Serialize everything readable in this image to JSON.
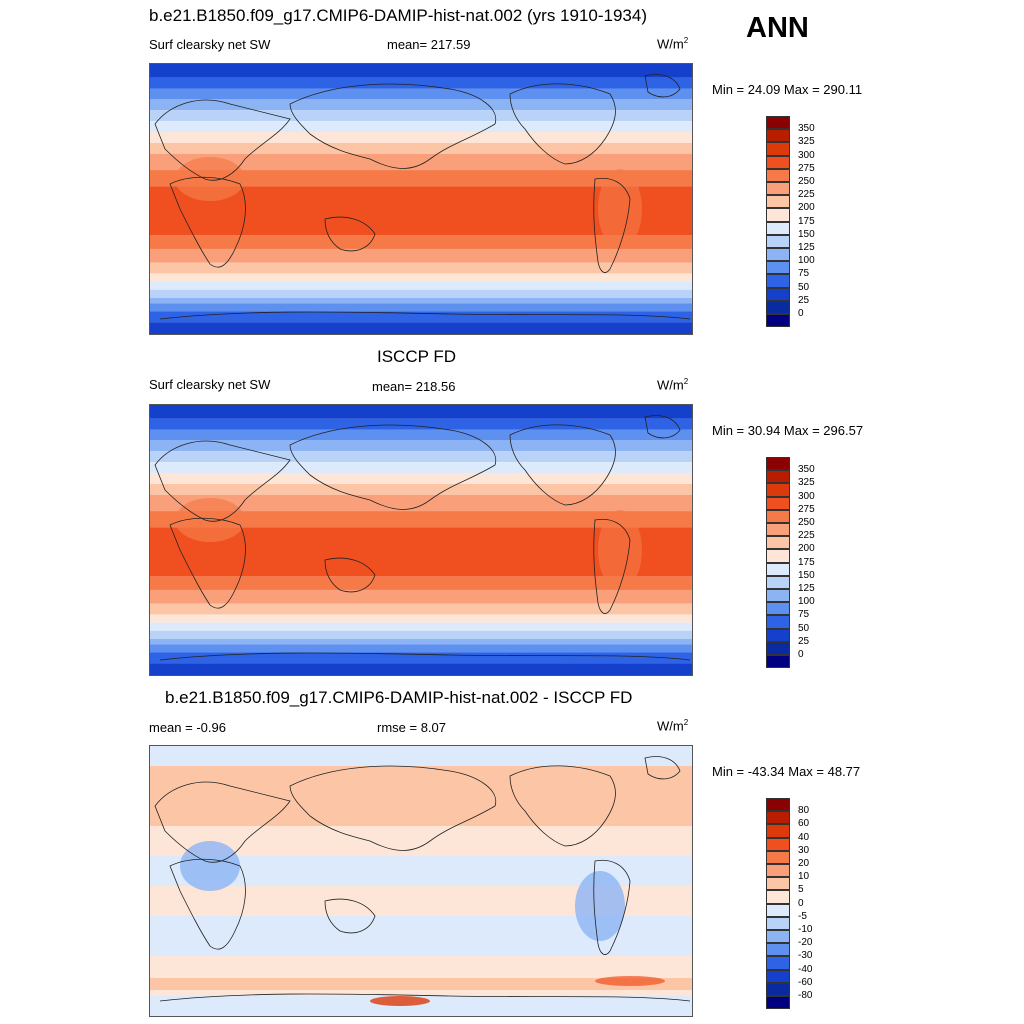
{
  "figure": {
    "season": "ANN"
  },
  "panels": [
    {
      "title": "b.e21.B1850.f09_g17.CMIP6-DAMIP-hist-nat.002 (yrs 1910-1934)",
      "left_label": "Surf clearsky net SW",
      "center_label": "mean= 217.59",
      "units": "W/m",
      "units_sup": "2",
      "minmax": "Min =  24.09 Max = 290.11",
      "field": "model"
    },
    {
      "title": "ISCCP FD",
      "left_label": "Surf clearsky net SW",
      "center_label": "mean= 218.56",
      "units": "W/m",
      "units_sup": "2",
      "minmax": "Min =  30.94 Max = 296.57",
      "field": "obs"
    },
    {
      "title": "b.e21.B1850.f09_g17.CMIP6-DAMIP-hist-nat.002 - ISCCP FD",
      "left_label": "mean =  -0.96",
      "center_label": "rmse =   8.07",
      "units": "W/m",
      "units_sup": "2",
      "minmax": "Min = -43.34 Max =  48.77",
      "field": "diff"
    }
  ],
  "colorbars": {
    "absolute": {
      "levels": [
        "350",
        "325",
        "300",
        "275",
        "250",
        "225",
        "200",
        "175",
        "150",
        "125",
        "100",
        "75",
        "50",
        "25",
        "0"
      ],
      "colors": [
        "#8b0000",
        "#b81d00",
        "#dc3a0a",
        "#f05020",
        "#f57a48",
        "#f9a07a",
        "#fcc6a6",
        "#fde6d8",
        "#dceafb",
        "#b9d3f8",
        "#8cb4f5",
        "#5e90f0",
        "#2f63e6",
        "#1440cc",
        "#0a2aa0",
        "#000080"
      ]
    },
    "difference": {
      "levels": [
        "80",
        "60",
        "40",
        "30",
        "20",
        "10",
        "5",
        "0",
        "-5",
        "-10",
        "-20",
        "-30",
        "-40",
        "-60",
        "-80"
      ],
      "colors": [
        "#8b0000",
        "#b81d00",
        "#dc3a0a",
        "#f05020",
        "#f57a48",
        "#f9a07a",
        "#fcc6a6",
        "#fde6d8",
        "#dceafb",
        "#b9d3f8",
        "#8cb4f5",
        "#5e90f0",
        "#2f63e6",
        "#1440cc",
        "#0a2aa0",
        "#000080"
      ]
    }
  }
}
